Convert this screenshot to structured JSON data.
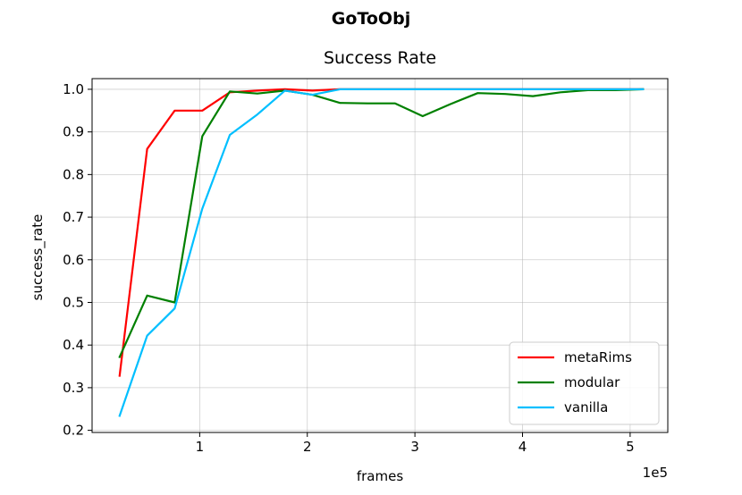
{
  "chart_data": {
    "type": "line",
    "suptitle": "GoToObj",
    "title": "Success Rate",
    "xlabel": "frames",
    "ylabel": "success_rate",
    "x_offset_text": "1e5",
    "xlim": [
      0.0,
      5.35
    ],
    "ylim": [
      0.195,
      1.025
    ],
    "xticks": [
      1,
      2,
      3,
      4,
      5
    ],
    "xtick_labels": [
      "1",
      "2",
      "3",
      "4",
      "5"
    ],
    "yticks": [
      0.2,
      0.3,
      0.4,
      0.5,
      0.6,
      0.7,
      0.8,
      0.9,
      1.0
    ],
    "ytick_labels": [
      "0.2",
      "0.3",
      "0.4",
      "0.5",
      "0.6",
      "0.7",
      "0.8",
      "0.9",
      "1.0"
    ],
    "grid": true,
    "legend_position": "lower-right",
    "series": [
      {
        "name": "metaRims",
        "color": "#ff0000",
        "x": [
          0.256,
          0.512,
          0.768,
          1.024,
          1.28,
          1.536,
          1.792,
          2.048,
          2.304,
          2.56,
          2.816,
          3.072,
          3.328,
          3.584,
          3.84,
          4.096,
          4.352,
          4.608,
          4.864,
          5.12
        ],
        "y": [
          0.328,
          0.86,
          0.95,
          0.95,
          0.993,
          0.997,
          1.0,
          0.997,
          1.0,
          1.0,
          1.0,
          1.0,
          1.0,
          1.0,
          1.0,
          1.0,
          1.0,
          1.0,
          1.0,
          1.0
        ]
      },
      {
        "name": "modular",
        "color": "#008000",
        "x": [
          0.256,
          0.512,
          0.768,
          1.024,
          1.28,
          1.536,
          1.792,
          2.048,
          2.304,
          2.56,
          2.816,
          3.072,
          3.328,
          3.584,
          3.84,
          4.096,
          4.352,
          4.608,
          4.864,
          5.12
        ],
        "y": [
          0.372,
          0.516,
          0.5,
          0.89,
          0.995,
          0.99,
          0.997,
          0.987,
          0.968,
          0.967,
          0.967,
          0.937,
          0.965,
          0.991,
          0.989,
          0.984,
          0.993,
          0.998,
          0.998,
          1.0
        ]
      },
      {
        "name": "vanilla",
        "color": "#00bfff",
        "x": [
          0.256,
          0.512,
          0.768,
          1.024,
          1.28,
          1.536,
          1.792,
          2.048,
          2.304,
          2.56,
          2.816,
          3.072,
          3.328,
          3.584,
          3.84,
          4.096,
          4.352,
          4.608,
          4.864,
          5.12
        ],
        "y": [
          0.234,
          0.422,
          0.486,
          0.72,
          0.893,
          0.941,
          0.997,
          0.987,
          1.0,
          1.0,
          1.0,
          1.0,
          1.0,
          1.0,
          1.0,
          1.0,
          1.0,
          1.0,
          1.0,
          1.0
        ]
      }
    ]
  }
}
